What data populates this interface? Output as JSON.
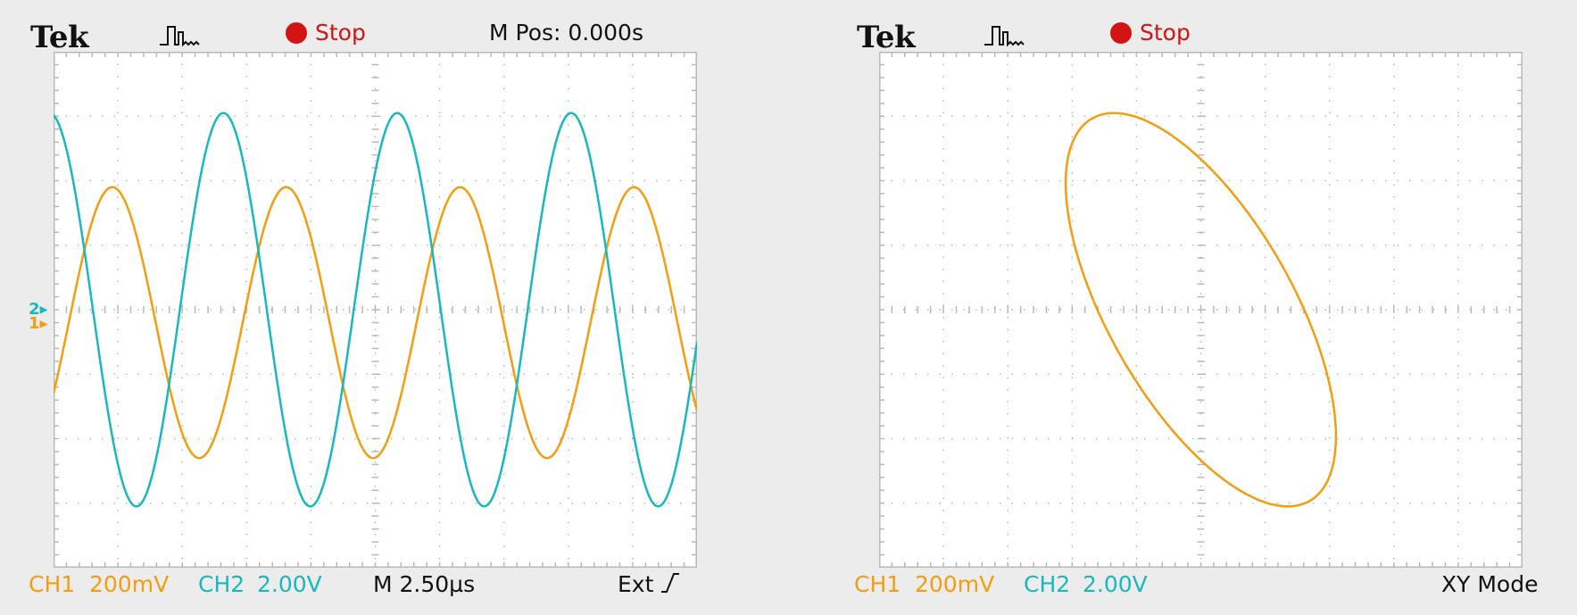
{
  "scopes": [
    {
      "brand": "Tek",
      "trigger_icon": "pulse-trigger-icon",
      "status": "Stop",
      "m_pos": "M Pos: 0.000s",
      "ch1": {
        "name": "CH1",
        "scale": "200mV"
      },
      "ch2": {
        "name": "CH2",
        "scale": "2.00V"
      },
      "timebase": "M 2.50µs",
      "trigger_source": "Ext",
      "trigger_slope_icon": "rising-edge-icon",
      "trigger_position_marker": "trigger-position-arrow-icon",
      "channel_markers": {
        "ch2": "2",
        "ch1": "1"
      }
    },
    {
      "brand": "Tek",
      "trigger_icon": "pulse-trigger-icon",
      "status": "Stop",
      "ch1": {
        "name": "CH1",
        "scale": "200mV"
      },
      "ch2": {
        "name": "CH2",
        "scale": "2.00V"
      },
      "mode": "XY Mode"
    }
  ],
  "colors": {
    "ch1": "#f59d0e",
    "ch2": "#17b8bf",
    "stop": "#d21414",
    "grid": "#b9b9b9",
    "screen_bg": "#ffffff",
    "page_bg": "#ececec"
  },
  "waveforms": {
    "grid_divisions": {
      "horizontal": 10,
      "vertical": 8
    },
    "ch1": {
      "amplitude_div": 2.1,
      "offset_div": -0.2,
      "cycles_per_screen": 3.7,
      "phase_rad": -0.55
    },
    "ch2": {
      "amplitude_div": 3.05,
      "offset_div": 0.0,
      "cycles_per_screen": 3.7,
      "phase_rad": 1.72
    },
    "xy_trace": {
      "amplitude_x_div": 2.1,
      "amplitude_y_div": 3.05,
      "phase_difference_rad": 2.27
    }
  }
}
